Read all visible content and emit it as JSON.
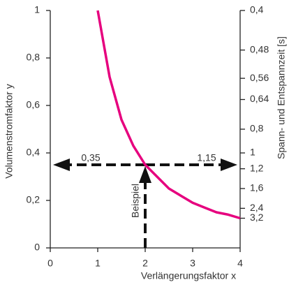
{
  "chart_data": {
    "type": "line",
    "x_label": "Verlängerungsfaktor x",
    "y_label": "Volumenstromfaktor y",
    "y2_label": "Spann- und Entspannzeit [s]",
    "x": [
      1,
      1.25,
      1.5,
      1.75,
      2,
      2.25,
      2.5,
      2.75,
      3,
      3.25,
      3.5,
      3.75,
      4
    ],
    "series": [
      {
        "color": "#e6007e",
        "values": [
          1,
          0.72,
          0.54,
          0.43,
          0.35,
          0.3,
          0.25,
          0.22,
          0.19,
          0.17,
          0.15,
          0.14,
          0.125
        ]
      }
    ],
    "xlim": [
      0,
      4
    ],
    "xticks": [
      0,
      1,
      2,
      3,
      4
    ],
    "ylim": [
      0,
      1
    ],
    "yticks": [
      0,
      {
        "value": 0.2,
        "label": "0,2"
      },
      {
        "value": 0.4,
        "label": "0,4"
      },
      {
        "value": 0.6,
        "label": "0,6"
      },
      {
        "value": 0.8,
        "label": "0,8"
      },
      1
    ],
    "y2scale": "reciprocal",
    "y2ticks": [
      {
        "value": 0.4,
        "label": "0,4"
      },
      {
        "value": 0.48,
        "label": "0,48"
      },
      {
        "value": 0.56,
        "label": "0,56"
      },
      {
        "value": 0.64,
        "label": "0,64"
      },
      {
        "value": 0.8,
        "label": "0,8"
      },
      1,
      {
        "value": 1.2,
        "label": "1,2"
      },
      {
        "value": 1.6,
        "label": "1,6"
      },
      {
        "value": 2.4,
        "label": "2,4"
      },
      {
        "value": 3.2,
        "label": "3,2"
      }
    ],
    "marker": {
      "x": 2,
      "y": 0.35,
      "y2": 1.15,
      "label": "Beispiel",
      "y_value_label": "0,35",
      "y2_value_label": "1,15"
    }
  }
}
